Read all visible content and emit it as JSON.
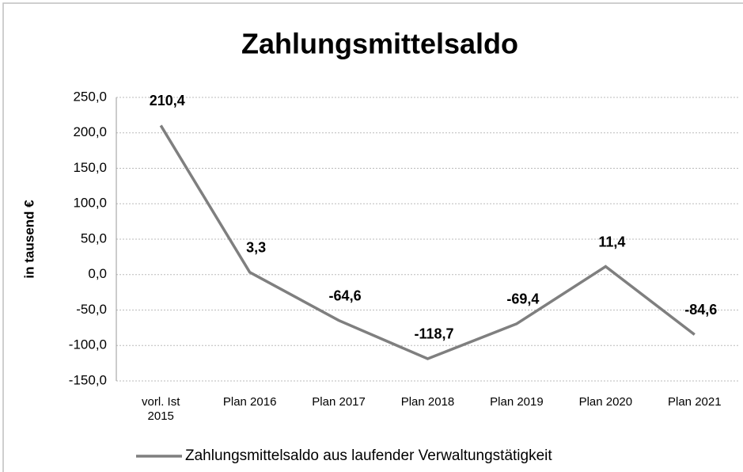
{
  "chart_data": {
    "type": "line",
    "title": "Zahlungsmittelsaldo",
    "y_label": "in tausend €",
    "categories": [
      "vorl. Ist 2015",
      "Plan 2016",
      "Plan 2017",
      "Plan 2018",
      "Plan 2019",
      "Plan 2020",
      "Plan 2021"
    ],
    "series": [
      {
        "name": "Zahlungsmittelsaldo aus laufender Verwaltungstätigkeit",
        "color": "#7f7f7f",
        "values": [
          210.4,
          3.3,
          -64.6,
          -118.7,
          -69.4,
          11.4,
          -84.6
        ],
        "value_labels": [
          "210,4",
          "3,3",
          "-64,6",
          "-118,7",
          "-69,4",
          "11,4",
          "-84,6"
        ]
      }
    ],
    "ylim": [
      -150,
      250
    ],
    "yticks": [
      {
        "value": -150,
        "label": "-150,0"
      },
      {
        "value": -100,
        "label": "-100,0"
      },
      {
        "value": -50,
        "label": "-50,0"
      },
      {
        "value": 0,
        "label": "0,0"
      },
      {
        "value": 50,
        "label": "50,0"
      },
      {
        "value": 100,
        "label": "100,0"
      },
      {
        "value": 150,
        "label": "150,0"
      },
      {
        "value": 200,
        "label": "200,0"
      },
      {
        "value": 250,
        "label": "250,0"
      }
    ],
    "grid": true,
    "legend": "bottom"
  }
}
